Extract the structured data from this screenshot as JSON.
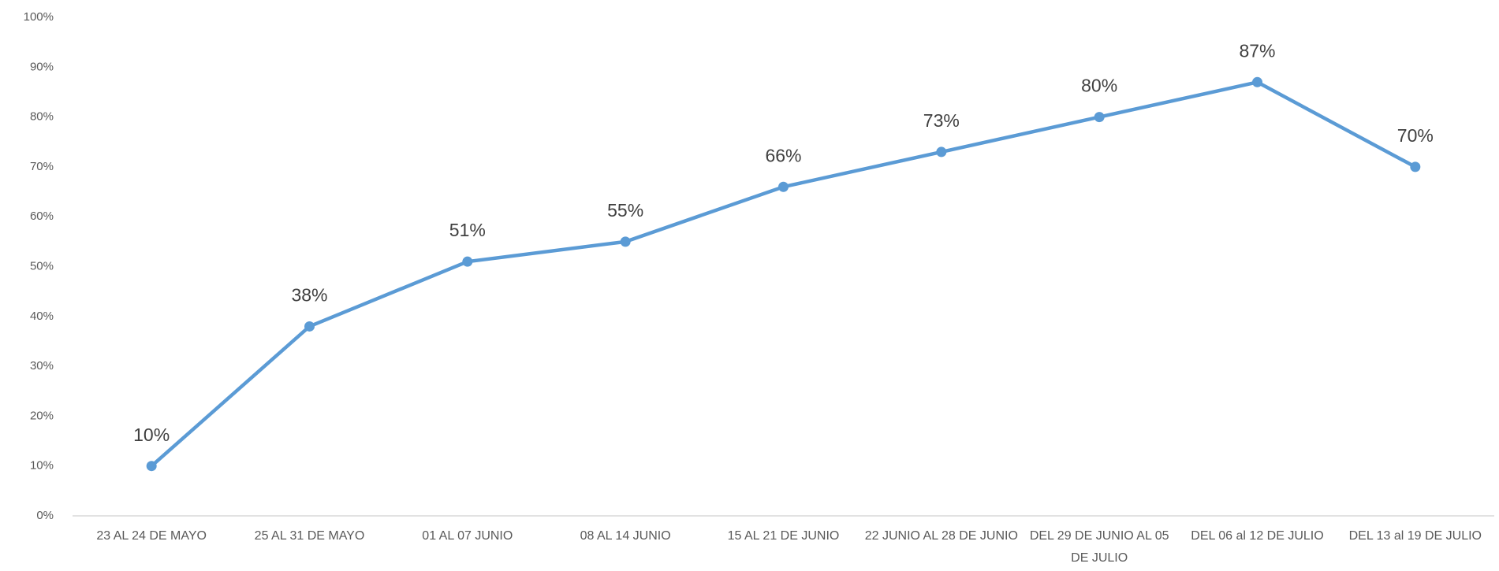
{
  "chart_data": {
    "type": "line",
    "categories": [
      "23 AL 24 DE MAYO",
      "25 AL 31 DE MAYO",
      "01 AL 07 JUNIO",
      "08 AL 14 JUNIO",
      "15 AL 21 DE JUNIO",
      "22 JUNIO AL 28 DE JUNIO",
      "DEL 29 DE JUNIO AL 05 DE JULIO",
      "DEL 06 al 12 DE JULIO",
      "DEL 13 al 19 DE JULIO"
    ],
    "series": [
      {
        "color": "#5b9bd5",
        "values": [
          10,
          38,
          51,
          55,
          66,
          73,
          80,
          87,
          70
        ],
        "value_labels": [
          "10%",
          "38%",
          "51%",
          "55%",
          "66%",
          "73%",
          "80%",
          "87%",
          "70%"
        ]
      }
    ],
    "ylim": [
      0,
      100
    ],
    "yticks": [
      {
        "value": 0,
        "label": "0%"
      },
      {
        "value": 10,
        "label": "10%"
      },
      {
        "value": 20,
        "label": "20%"
      },
      {
        "value": 30,
        "label": "30%"
      },
      {
        "value": 40,
        "label": "40%"
      },
      {
        "value": 50,
        "label": "50%"
      },
      {
        "value": 60,
        "label": "60%"
      },
      {
        "value": 70,
        "label": "70%"
      },
      {
        "value": 80,
        "label": "80%"
      },
      {
        "value": 90,
        "label": "90%"
      },
      {
        "value": 100,
        "label": "100%"
      }
    ],
    "grid": false
  }
}
